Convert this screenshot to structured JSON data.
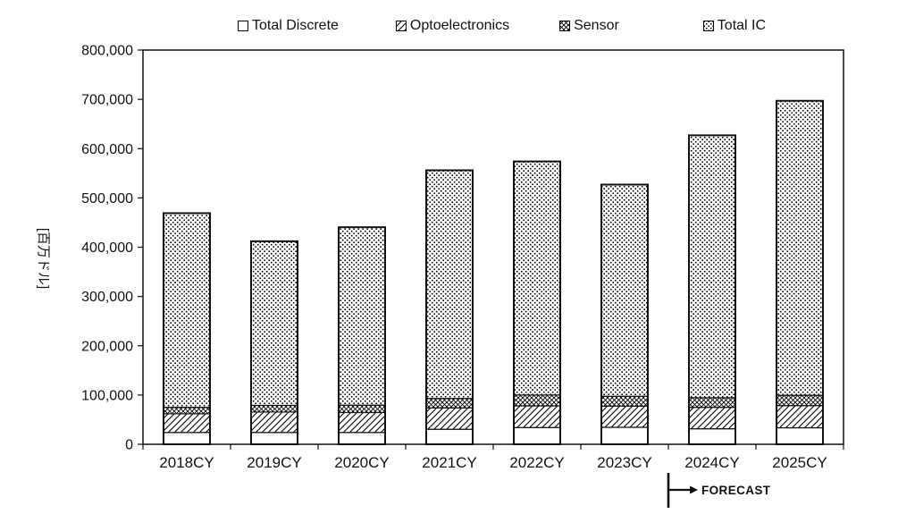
{
  "chart_data": {
    "type": "bar",
    "stacked": true,
    "title": "",
    "ylabel": "[百万ドル]",
    "xlabel": "",
    "ylim": [
      0,
      800000
    ],
    "ytick_step": 100000,
    "ytick_labels": [
      "0",
      "100,000",
      "200,000",
      "300,000",
      "400,000",
      "500,000",
      "600,000",
      "700,000",
      "800,000"
    ],
    "grid": false,
    "legend_position": "top",
    "categories": [
      "2018CY",
      "2019CY",
      "2020CY",
      "2021CY",
      "2022CY",
      "2023CY",
      "2024CY",
      "2025CY"
    ],
    "series": [
      {
        "name": "Total Discrete",
        "pattern": "plain-white",
        "values": [
          24000,
          24000,
          24000,
          30500,
          34000,
          34500,
          31500,
          33500
        ]
      },
      {
        "name": "Optoelectronics",
        "pattern": "diagonal-hatch",
        "values": [
          38000,
          41500,
          40500,
          43500,
          44000,
          43000,
          43500,
          45000
        ]
      },
      {
        "name": "Sensor",
        "pattern": "crosshatch",
        "values": [
          13000,
          13500,
          15000,
          19000,
          22000,
          20000,
          19500,
          21000
        ]
      },
      {
        "name": "Total IC",
        "pattern": "dots",
        "values": [
          394000,
          333000,
          361000,
          463000,
          474000,
          429500,
          532500,
          597500
        ]
      }
    ],
    "totals": [
      469000,
      412000,
      440500,
      556000,
      574000,
      527000,
      627000,
      697000
    ],
    "annotation": {
      "label": "FORECAST",
      "marks_from_category": "2024CY"
    },
    "colors": {
      "ink": "#111111",
      "bar_outline": "#1a1a1a",
      "background": "#ffffff"
    }
  }
}
